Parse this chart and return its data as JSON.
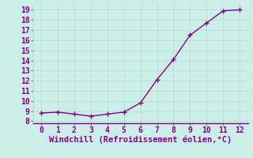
{
  "x": [
    0,
    1,
    2,
    3,
    4,
    5,
    6,
    7,
    8,
    9,
    10,
    11,
    12
  ],
  "y": [
    8.8,
    8.9,
    8.7,
    8.5,
    8.7,
    8.9,
    9.8,
    12.1,
    14.1,
    16.5,
    17.7,
    18.9,
    19.0
  ],
  "line_color": "#880088",
  "marker": "+",
  "marker_size": 4,
  "marker_linewidth": 1.0,
  "xlabel": "Windchill (Refroidissement éolien,°C)",
  "xlim": [
    -0.5,
    12.5
  ],
  "ylim": [
    7.8,
    19.5
  ],
  "xticks": [
    0,
    1,
    2,
    3,
    4,
    5,
    6,
    7,
    8,
    9,
    10,
    11,
    12
  ],
  "yticks": [
    8,
    9,
    10,
    11,
    12,
    13,
    14,
    15,
    16,
    17,
    18,
    19
  ],
  "background_color": "#cceee8",
  "grid_color": "#aaddcc",
  "line_width": 1.0,
  "tick_color": "#880088",
  "label_color": "#880088",
  "font_size": 7,
  "xlabel_fontsize": 7.5
}
